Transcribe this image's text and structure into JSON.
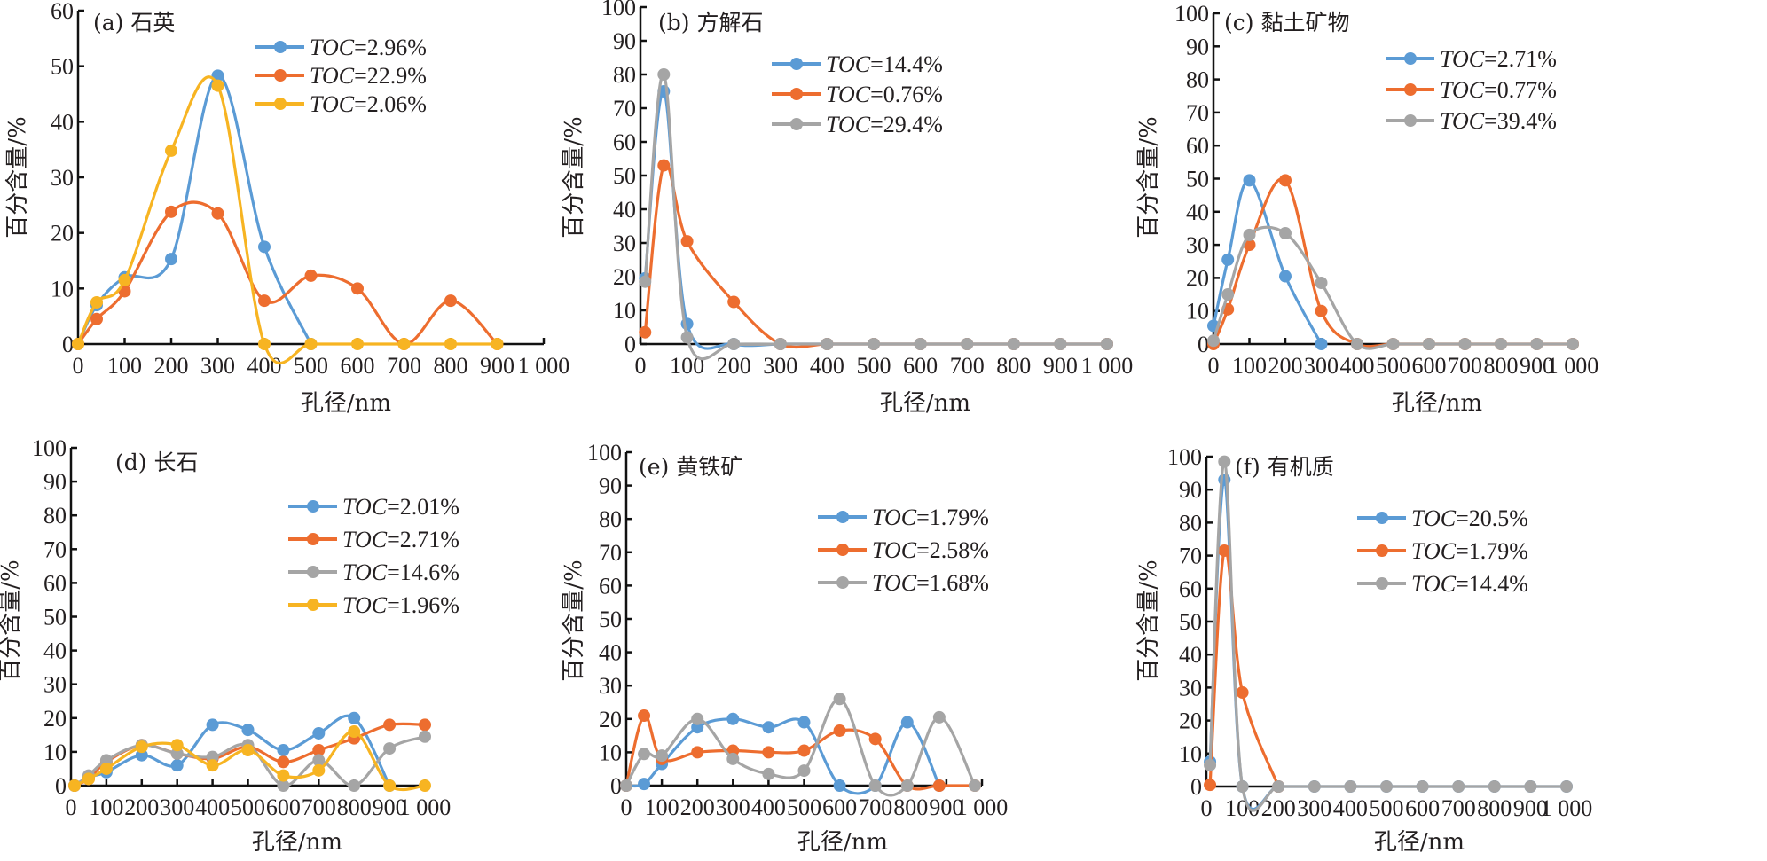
{
  "colors": {
    "blue": "#5b9bd5",
    "orange": "#ed6d2f",
    "gray": "#a5a5a5",
    "yellow": "#f7b422",
    "axis": "#111111",
    "text": "#231f20"
  },
  "chart_data": [
    {
      "id": "a",
      "type": "line",
      "title": "(a) 石英",
      "xlabel": "孔径/nm",
      "ylabel": "百分含量/%",
      "xlim": [
        0,
        1000
      ],
      "ylim": [
        0,
        60
      ],
      "xticks": [
        0,
        100,
        200,
        300,
        400,
        500,
        600,
        700,
        800,
        900,
        1000
      ],
      "xtick_labels": [
        "0",
        "100",
        "200",
        "300",
        "400",
        "500",
        "600",
        "700",
        "800",
        "900",
        "1 000"
      ],
      "yticks": [
        0,
        10,
        20,
        30,
        40,
        50,
        60
      ],
      "ytick_labels": [
        "0",
        "10",
        "20",
        "30",
        "40",
        "50",
        "60"
      ],
      "legend_position": "top-right",
      "series": [
        {
          "name": "TOC=2.96%",
          "toc_prefix": "TOC",
          "toc_value": "=2.96%",
          "color": "blue",
          "x": [
            0,
            40,
            100,
            200,
            300,
            400,
            500
          ],
          "y": [
            0,
            7,
            12,
            15.3,
            48.3,
            17.5,
            0
          ]
        },
        {
          "name": "TOC=22.9%",
          "toc_prefix": "TOC",
          "toc_value": "=22.9%",
          "color": "orange",
          "x": [
            0,
            40,
            100,
            200,
            300,
            400,
            500,
            600,
            700,
            800,
            900
          ],
          "y": [
            0,
            4.5,
            9.5,
            23.8,
            23.5,
            7.8,
            12.3,
            10,
            0,
            7.8,
            0
          ]
        },
        {
          "name": "TOC=2.06%",
          "toc_prefix": "TOC",
          "toc_value": "=2.06%",
          "color": "yellow",
          "x": [
            0,
            40,
            100,
            200,
            300,
            400,
            500,
            600,
            700,
            800,
            900
          ],
          "y": [
            0,
            7.5,
            11.5,
            34.8,
            46.5,
            0,
            0,
            0,
            0,
            0,
            0
          ]
        }
      ]
    },
    {
      "id": "b",
      "type": "line",
      "title": "(b) 方解石",
      "xlabel": "孔径/nm",
      "ylabel": "百分含量/%",
      "xlim": [
        0,
        1000
      ],
      "ylim": [
        0,
        100
      ],
      "xticks": [
        0,
        100,
        200,
        300,
        400,
        500,
        600,
        700,
        800,
        900,
        1000
      ],
      "xtick_labels": [
        "0",
        "100",
        "200",
        "300",
        "400",
        "500",
        "600",
        "700",
        "800",
        "900",
        "1 000"
      ],
      "yticks": [
        0,
        10,
        20,
        30,
        40,
        50,
        60,
        70,
        80,
        90,
        100
      ],
      "ytick_labels": [
        "0",
        "10",
        "20",
        "30",
        "40",
        "50",
        "60",
        "70",
        "80",
        "90",
        "100"
      ],
      "legend_position": "top-right",
      "series": [
        {
          "name": "TOC=14.4%",
          "toc_prefix": "TOC",
          "toc_value": "=14.4%",
          "color": "blue",
          "x": [
            10,
            50,
            100,
            200,
            300,
            400,
            500,
            600,
            700,
            800,
            900,
            1000
          ],
          "y": [
            19.5,
            75,
            6,
            0,
            0,
            0,
            0,
            0,
            0,
            0,
            0,
            0
          ]
        },
        {
          "name": "TOC=0.76%",
          "toc_prefix": "TOC",
          "toc_value": "=0.76%",
          "color": "orange",
          "x": [
            10,
            50,
            100,
            200,
            300,
            400,
            500,
            600,
            700,
            800,
            900,
            1000
          ],
          "y": [
            3.5,
            53,
            30.5,
            12.5,
            0,
            0,
            0,
            0,
            0,
            0,
            0,
            0
          ]
        },
        {
          "name": "TOC=29.4%",
          "toc_prefix": "TOC",
          "toc_value": "=29.4%",
          "color": "gray",
          "x": [
            10,
            50,
            100,
            200,
            300,
            400,
            500,
            600,
            700,
            800,
            900,
            1000
          ],
          "y": [
            18.5,
            80,
            2,
            0,
            0,
            0,
            0,
            0,
            0,
            0,
            0,
            0
          ]
        }
      ]
    },
    {
      "id": "c",
      "type": "line",
      "title": "(c) 黏土矿物",
      "xlabel": "孔径/nm",
      "ylabel": "百分含量/%",
      "xlim": [
        0,
        1000
      ],
      "ylim": [
        0,
        100
      ],
      "xticks": [
        0,
        100,
        200,
        300,
        400,
        500,
        600,
        700,
        800,
        900,
        1000
      ],
      "xtick_labels": [
        "0",
        "100",
        "200",
        "300",
        "400",
        "500",
        "600",
        "700",
        "800",
        "900",
        "1 000"
      ],
      "yticks": [
        0,
        10,
        20,
        30,
        40,
        50,
        60,
        70,
        80,
        90,
        100
      ],
      "ytick_labels": [
        "0",
        "10",
        "20",
        "30",
        "40",
        "50",
        "60",
        "70",
        "80",
        "90",
        "100"
      ],
      "legend_position": "top-right",
      "series": [
        {
          "name": "TOC=2.71%",
          "toc_prefix": "TOC",
          "toc_value": "=2.71%",
          "color": "blue",
          "x": [
            0,
            40,
            100,
            200,
            300
          ],
          "y": [
            5.5,
            25.5,
            49.5,
            20.5,
            0
          ]
        },
        {
          "name": "TOC=0.77%",
          "toc_prefix": "TOC",
          "toc_value": "=0.77%",
          "color": "orange",
          "x": [
            0,
            40,
            100,
            200,
            300,
            400,
            500,
            600,
            700,
            800,
            900,
            1000
          ],
          "y": [
            0,
            10.5,
            30,
            49.5,
            10,
            0,
            0,
            0,
            0,
            0,
            0,
            0
          ]
        },
        {
          "name": "TOC=39.4%",
          "toc_prefix": "TOC",
          "toc_value": "=39.4%",
          "color": "gray",
          "x": [
            0,
            40,
            100,
            200,
            300,
            400,
            500,
            600,
            700,
            800,
            900,
            1000
          ],
          "y": [
            1,
            15,
            33,
            33.5,
            18.5,
            0,
            0,
            0,
            0,
            0,
            0,
            0
          ]
        }
      ]
    },
    {
      "id": "d",
      "type": "line",
      "title": "(d) 长石",
      "xlabel": "孔径/nm",
      "ylabel": "百分含量/%",
      "xlim": [
        0,
        1000
      ],
      "ylim": [
        0,
        100
      ],
      "xticks": [
        0,
        100,
        200,
        300,
        400,
        500,
        600,
        700,
        800,
        900,
        1000
      ],
      "xtick_labels": [
        "0",
        "100",
        "200",
        "300",
        "400",
        "500",
        "600",
        "700",
        "800",
        "900",
        "1 000"
      ],
      "yticks": [
        0,
        10,
        20,
        30,
        40,
        50,
        60,
        70,
        80,
        90,
        100
      ],
      "ytick_labels": [
        "0",
        "10",
        "20",
        "30",
        "40",
        "50",
        "60",
        "70",
        "80",
        "90",
        "100"
      ],
      "legend_position": "top-right",
      "series": [
        {
          "name": "TOC=2.01%",
          "toc_prefix": "TOC",
          "toc_value": "=2.01%",
          "color": "blue",
          "x": [
            10,
            50,
            100,
            200,
            300,
            400,
            500,
            600,
            700,
            800,
            900
          ],
          "y": [
            0,
            2.5,
            4,
            9,
            6,
            18,
            16.5,
            10.5,
            15.5,
            20,
            0
          ]
        },
        {
          "name": "TOC=2.71%",
          "toc_prefix": "TOC",
          "toc_value": "=2.71%",
          "color": "orange",
          "x": [
            10,
            50,
            100,
            200,
            300,
            400,
            500,
            600,
            700,
            800,
            900,
            1000
          ],
          "y": [
            0,
            2,
            7,
            12,
            9.5,
            8,
            11.5,
            7,
            10.5,
            14,
            18,
            18
          ]
        },
        {
          "name": "TOC=14.6%",
          "toc_prefix": "TOC",
          "toc_value": "=14.6%",
          "color": "gray",
          "x": [
            10,
            50,
            100,
            200,
            300,
            400,
            500,
            600,
            700,
            800,
            900,
            1000
          ],
          "y": [
            0,
            3,
            7.5,
            12,
            9.5,
            8.5,
            12,
            0,
            7.5,
            0,
            11,
            14.5
          ]
        },
        {
          "name": "TOC=1.96%",
          "toc_prefix": "TOC",
          "toc_value": "=1.96%",
          "color": "yellow",
          "x": [
            10,
            50,
            100,
            200,
            300,
            400,
            500,
            600,
            700,
            800,
            900,
            1000
          ],
          "y": [
            0,
            2,
            5,
            11.5,
            12,
            6,
            10.5,
            3,
            4.5,
            16,
            0,
            0
          ]
        }
      ]
    },
    {
      "id": "e",
      "type": "line",
      "title": "(e) 黄铁矿",
      "xlabel": "孔径/nm",
      "ylabel": "百分含量/%",
      "xlim": [
        0,
        1000
      ],
      "ylim": [
        0,
        100
      ],
      "xticks": [
        0,
        100,
        200,
        300,
        400,
        500,
        600,
        700,
        800,
        900,
        1000
      ],
      "xtick_labels": [
        "0",
        "100",
        "200",
        "300",
        "400",
        "500",
        "600",
        "700",
        "800",
        "900",
        "1 000"
      ],
      "yticks": [
        0,
        10,
        20,
        30,
        40,
        50,
        60,
        70,
        80,
        90,
        100
      ],
      "ytick_labels": [
        "0",
        "10",
        "20",
        "30",
        "40",
        "50",
        "60",
        "70",
        "80",
        "90",
        "100"
      ],
      "legend_position": "top-right",
      "series": [
        {
          "name": "TOC=1.79%",
          "toc_prefix": "TOC",
          "toc_value": "=1.79%",
          "color": "blue",
          "x": [
            0,
            50,
            100,
            200,
            300,
            400,
            500,
            600,
            700,
            790,
            880
          ],
          "y": [
            0,
            0.5,
            6.5,
            17.5,
            20,
            17.5,
            19,
            0,
            0,
            19,
            0
          ]
        },
        {
          "name": "TOC=2.58%",
          "toc_prefix": "TOC",
          "toc_value": "=2.58%",
          "color": "orange",
          "x": [
            0,
            50,
            100,
            200,
            300,
            400,
            500,
            600,
            700,
            790,
            880,
            980
          ],
          "y": [
            0,
            21,
            8,
            10,
            10.5,
            10,
            10.5,
            16.5,
            14,
            0,
            0,
            0
          ]
        },
        {
          "name": "TOC=1.68%",
          "toc_prefix": "TOC",
          "toc_value": "=1.68%",
          "color": "gray",
          "x": [
            0,
            50,
            100,
            200,
            300,
            400,
            500,
            600,
            700,
            790,
            880,
            980
          ],
          "y": [
            0,
            9.5,
            9,
            20,
            8,
            3.5,
            4.5,
            26,
            0,
            0,
            20.5,
            0
          ]
        }
      ]
    },
    {
      "id": "f",
      "type": "line",
      "title": "(f) 有机质",
      "xlabel": "孔径/nm",
      "ylabel": "百分含量/%",
      "xlim": [
        0,
        1000
      ],
      "ylim": [
        0,
        100
      ],
      "xticks": [
        0,
        100,
        200,
        300,
        400,
        500,
        600,
        700,
        800,
        900,
        1000
      ],
      "xtick_labels": [
        "0",
        "100",
        "200",
        "300",
        "400",
        "500",
        "600",
        "700",
        "800",
        "900",
        "1 000"
      ],
      "yticks": [
        0,
        10,
        20,
        30,
        40,
        50,
        60,
        70,
        80,
        90,
        100
      ],
      "ytick_labels": [
        "0",
        "10",
        "20",
        "30",
        "40",
        "50",
        "60",
        "70",
        "80",
        "90",
        "100"
      ],
      "legend_position": "top-right",
      "series": [
        {
          "name": "TOC=20.5%",
          "toc_prefix": "TOC",
          "toc_value": "=20.5%",
          "color": "blue",
          "x": [
            10,
            50,
            100,
            200,
            300,
            400,
            500,
            600,
            700,
            800,
            900,
            1000
          ],
          "y": [
            7.5,
            93,
            0,
            0,
            0,
            0,
            0,
            0,
            0,
            0,
            0,
            0
          ]
        },
        {
          "name": "TOC=1.79%",
          "toc_prefix": "TOC",
          "toc_value": "=1.79%",
          "color": "orange",
          "x": [
            10,
            50,
            100,
            200
          ],
          "y": [
            0.5,
            71.5,
            28.5,
            0
          ]
        },
        {
          "name": "TOC=14.4%",
          "toc_prefix": "TOC",
          "toc_value": "=14.4%",
          "color": "gray",
          "x": [
            10,
            50,
            100,
            200,
            300,
            400,
            500,
            600,
            700,
            800,
            900,
            1000
          ],
          "y": [
            6.5,
            98.5,
            0,
            0,
            0,
            0,
            0,
            0,
            0,
            0,
            0,
            0
          ]
        }
      ]
    }
  ]
}
